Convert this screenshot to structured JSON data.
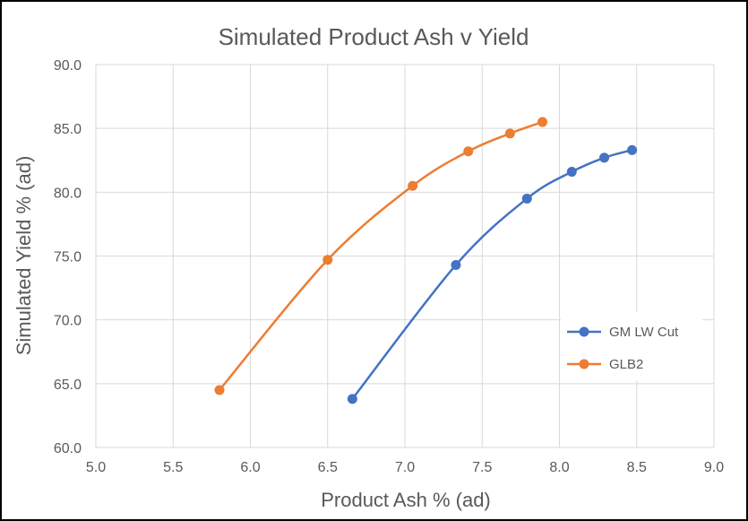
{
  "chart_data": {
    "type": "line",
    "title": "Simulated Product Ash v Yield",
    "xlabel": "Product Ash % (ad)",
    "ylabel": "Simulated Yield % (ad)",
    "xlim": [
      5.0,
      9.0
    ],
    "ylim": [
      60.0,
      90.0
    ],
    "x_ticks": [
      "5.0",
      "5.5",
      "6.0",
      "6.5",
      "7.0",
      "7.5",
      "8.0",
      "8.5",
      "9.0"
    ],
    "y_ticks": [
      "60.0",
      "65.0",
      "70.0",
      "75.0",
      "80.0",
      "85.0",
      "90.0"
    ],
    "grid": true,
    "legend_position": "right",
    "series": [
      {
        "name": "GM LW Cut",
        "color": "#4472C4",
        "points": [
          {
            "x": 6.66,
            "y": 63.8
          },
          {
            "x": 7.33,
            "y": 74.3
          },
          {
            "x": 7.79,
            "y": 79.5
          },
          {
            "x": 8.08,
            "y": 81.6
          },
          {
            "x": 8.29,
            "y": 82.7
          },
          {
            "x": 8.47,
            "y": 83.3
          }
        ]
      },
      {
        "name": "GLB2",
        "color": "#ED7D31",
        "points": [
          {
            "x": 5.8,
            "y": 64.5
          },
          {
            "x": 6.5,
            "y": 74.7
          },
          {
            "x": 7.05,
            "y": 80.5
          },
          {
            "x": 7.41,
            "y": 83.2
          },
          {
            "x": 7.68,
            "y": 84.6
          },
          {
            "x": 7.89,
            "y": 85.5
          }
        ]
      }
    ]
  }
}
